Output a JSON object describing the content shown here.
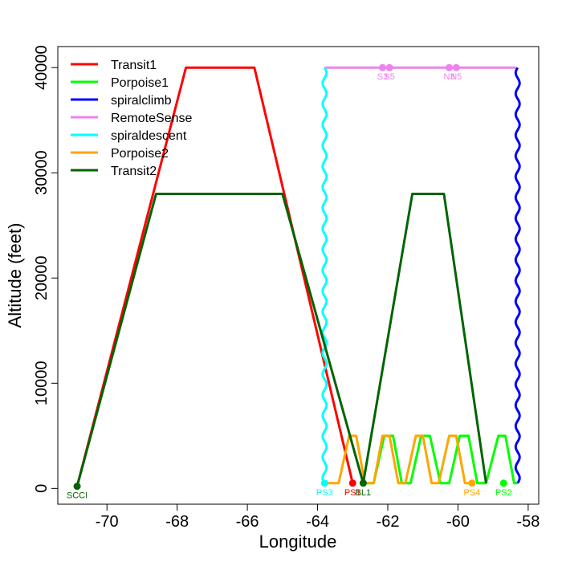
{
  "chart_data": {
    "type": "line",
    "xlabel": "Longitude",
    "ylabel": "Altitude (feet)",
    "xlim": [
      -71.4,
      -57.7
    ],
    "ylim": [
      -1500,
      42000
    ],
    "xticks": [
      -70,
      -68,
      -66,
      -64,
      -62,
      -60,
      -58
    ],
    "yticks": [
      0,
      10000,
      20000,
      30000,
      40000
    ],
    "grid": false,
    "legend_position": "top-left",
    "series": [
      {
        "name": "Transit1",
        "color": "#ff0000",
        "style": "line",
        "x": [
          -70.85,
          -67.75,
          -65.8,
          -63.0
        ],
        "y": [
          200,
          40000,
          40000,
          500
        ]
      },
      {
        "name": "Porpoise1",
        "color": "#00ff00",
        "style": "zigzag",
        "x": [
          -62.75,
          -62.4,
          -62.1,
          -61.85,
          -61.6,
          -61.35,
          -61.05,
          -60.8,
          -60.5,
          -60.25,
          -59.95,
          -59.7,
          -59.45,
          -59.2,
          -58.85,
          -58.65,
          -58.4,
          -58.3
        ],
        "y": [
          500,
          500,
          5000,
          5000,
          500,
          500,
          5000,
          5000,
          500,
          500,
          5000,
          5000,
          500,
          500,
          5000,
          5000,
          500,
          500
        ]
      },
      {
        "name": "spiralclimb",
        "color": "#0000ff",
        "style": "wavy-vertical",
        "x": [
          -58.3,
          -58.3
        ],
        "y": [
          500,
          40000
        ]
      },
      {
        "name": "RemoteSense",
        "color": "#ee82ee",
        "style": "line",
        "x": [
          -63.8,
          -58.35
        ],
        "y": [
          40000,
          40000
        ]
      },
      {
        "name": "spiraldescent",
        "color": "#00ffff",
        "style": "wavy-vertical",
        "x": [
          -63.8,
          -63.8
        ],
        "y": [
          40000,
          500
        ]
      },
      {
        "name": "Porpoise2",
        "color": "#ffa500",
        "style": "zigzag",
        "x": [
          -63.8,
          -63.4,
          -63.1,
          -62.9,
          -62.65,
          -62.4,
          -62.15,
          -61.95,
          -61.7,
          -61.5,
          -61.2,
          -61.0,
          -60.75,
          -60.55,
          -60.25,
          -60.05,
          -59.8,
          -59.6
        ],
        "y": [
          500,
          500,
          5000,
          5000,
          500,
          500,
          5000,
          5000,
          500,
          500,
          5000,
          5000,
          500,
          500,
          5000,
          5000,
          500,
          500
        ]
      },
      {
        "name": "Transit2",
        "color": "#006400",
        "style": "line",
        "x": [
          -70.85,
          -68.6,
          -65.0,
          -62.7,
          -61.3,
          -60.4,
          -59.2
        ],
        "y": [
          200,
          28000,
          28000,
          500,
          28000,
          28000,
          500
        ]
      }
    ],
    "points": [
      {
        "label": "SCCI",
        "x": -70.85,
        "y": 200,
        "color": "#006400"
      },
      {
        "label": "PS3",
        "x": -63.8,
        "y": 500,
        "color": "#00ffff"
      },
      {
        "label": "PS1",
        "x": -63.0,
        "y": 500,
        "color": "#ff0000"
      },
      {
        "label": "BL1",
        "x": -62.7,
        "y": 500,
        "color": "#006400"
      },
      {
        "label": "PS4",
        "x": -59.6,
        "y": 500,
        "color": "#ffa500"
      },
      {
        "label": "PS2",
        "x": -58.7,
        "y": 500,
        "color": "#00ff00"
      },
      {
        "label": "S3",
        "x": -62.15,
        "y": 40000,
        "color": "#ee82ee"
      },
      {
        "label": "S5",
        "x": -61.95,
        "y": 40000,
        "color": "#ee82ee"
      },
      {
        "label": "N3",
        "x": -60.25,
        "y": 40000,
        "color": "#ee82ee"
      },
      {
        "label": "N5",
        "x": -60.05,
        "y": 40000,
        "color": "#ee82ee"
      }
    ]
  }
}
